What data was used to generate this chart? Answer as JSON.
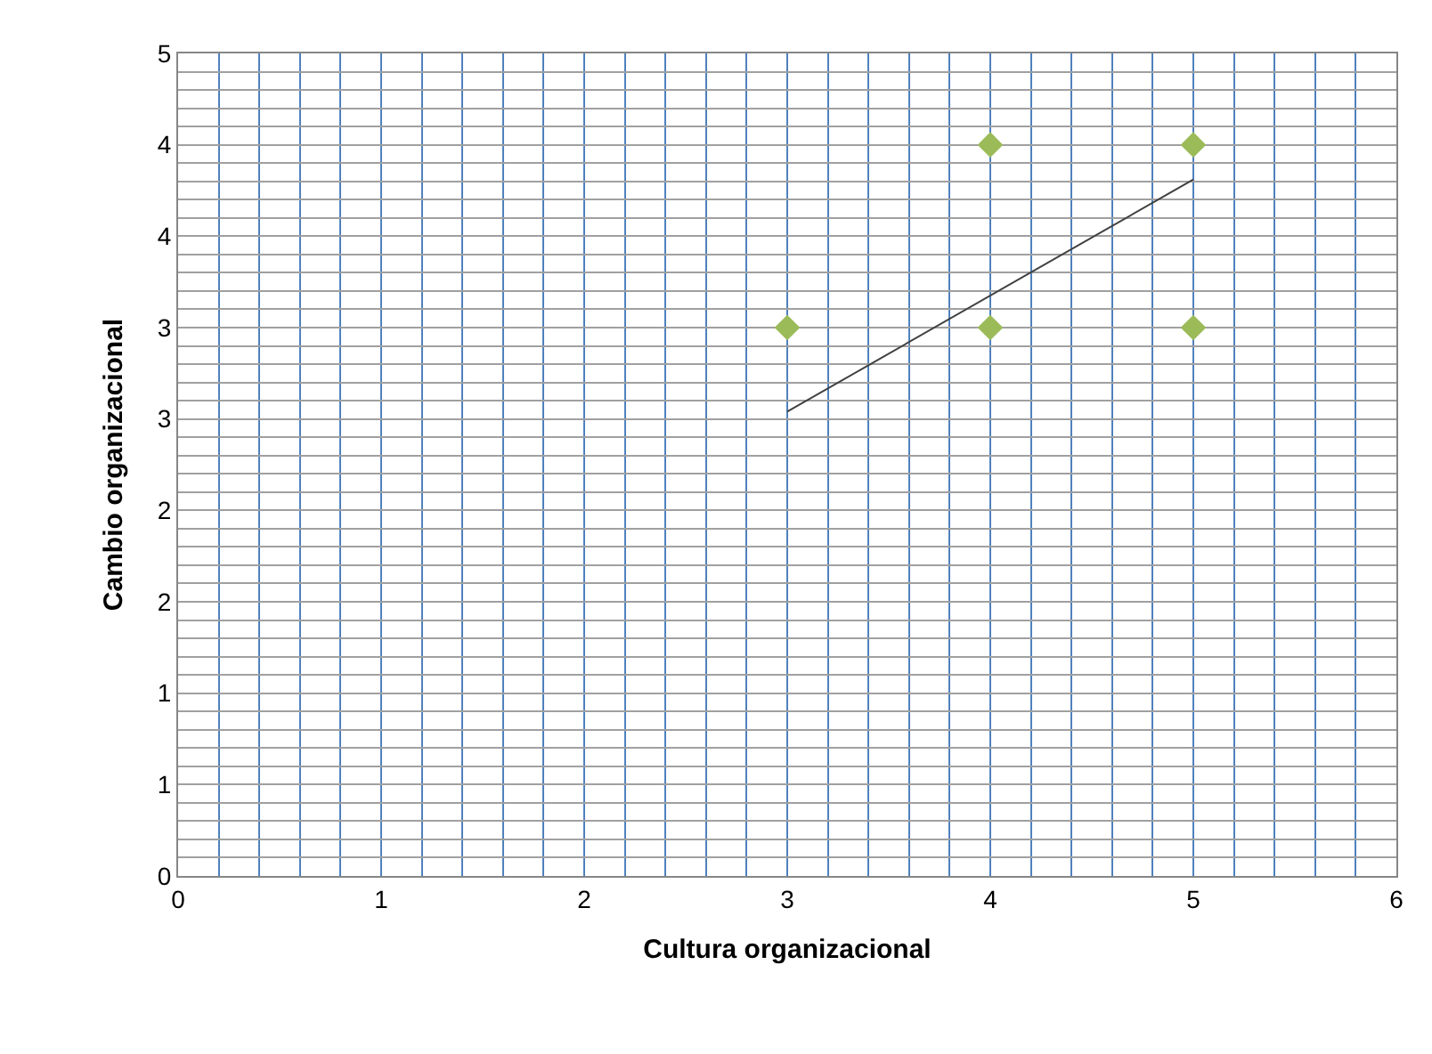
{
  "chart_data": {
    "type": "scatter",
    "xlabel": "Cultura organizacional",
    "ylabel": "Cambio organizacional",
    "series": [
      {
        "color": "#9bbb59",
        "marker": "diamond",
        "x": [
          3,
          4,
          4,
          5,
          5
        ],
        "values": [
          3,
          4,
          3,
          4,
          3
        ]
      },
      {
        "type": "line",
        "color": "#404040",
        "marker": "none",
        "x": [
          3,
          5
        ],
        "values": [
          2.54,
          3.81
        ]
      }
    ],
    "xlim": [
      0,
      6
    ],
    "ylim": [
      0,
      4.5
    ],
    "xticks": [
      0,
      {
        "value": 0.2,
        "label": null
      },
      {
        "value": 0.4,
        "label": null
      },
      {
        "value": 0.6,
        "label": null
      },
      {
        "value": 0.8,
        "label": null
      },
      1,
      {
        "value": 1.2,
        "label": null
      },
      {
        "value": 1.4,
        "label": null
      },
      {
        "value": 1.6,
        "label": null
      },
      {
        "value": 1.8,
        "label": null
      },
      2,
      {
        "value": 2.2,
        "label": null
      },
      {
        "value": 2.4,
        "label": null
      },
      {
        "value": 2.6,
        "label": null
      },
      {
        "value": 2.8,
        "label": null
      },
      3,
      {
        "value": 3.2,
        "label": null
      },
      {
        "value": 3.4,
        "label": null
      },
      {
        "value": 3.6,
        "label": null
      },
      {
        "value": 3.8,
        "label": null
      },
      4,
      {
        "value": 4.2,
        "label": null
      },
      {
        "value": 4.4,
        "label": null
      },
      {
        "value": 4.6,
        "label": null
      },
      {
        "value": 4.8,
        "label": null
      },
      5,
      {
        "value": 5.2,
        "label": null
      },
      {
        "value": 5.4,
        "label": null
      },
      {
        "value": 5.6,
        "label": null
      },
      {
        "value": 5.8,
        "label": null
      },
      6
    ],
    "yticks": [
      0,
      {
        "value": 0.1,
        "label": null
      },
      {
        "value": 0.2,
        "label": null
      },
      {
        "value": 0.3,
        "label": null
      },
      {
        "value": 0.4,
        "label": null
      },
      {
        "value": 0.5,
        "label": "1"
      },
      {
        "value": 0.6,
        "label": null
      },
      {
        "value": 0.7,
        "label": null
      },
      {
        "value": 0.8,
        "label": null
      },
      {
        "value": 0.9,
        "label": null
      },
      1,
      {
        "value": 1.1,
        "label": null
      },
      {
        "value": 1.2,
        "label": null
      },
      {
        "value": 1.3,
        "label": null
      },
      {
        "value": 1.4,
        "label": null
      },
      {
        "value": 1.5,
        "label": "2"
      },
      {
        "value": 1.6,
        "label": null
      },
      {
        "value": 1.7,
        "label": null
      },
      {
        "value": 1.8,
        "label": null
      },
      {
        "value": 1.9,
        "label": null
      },
      2,
      {
        "value": 2.1,
        "label": null
      },
      {
        "value": 2.2,
        "label": null
      },
      {
        "value": 2.3,
        "label": null
      },
      {
        "value": 2.4,
        "label": null
      },
      {
        "value": 2.5,
        "label": "3"
      },
      {
        "value": 2.6,
        "label": null
      },
      {
        "value": 2.7,
        "label": null
      },
      {
        "value": 2.8,
        "label": null
      },
      {
        "value": 2.9,
        "label": null
      },
      3,
      {
        "value": 3.1,
        "label": null
      },
      {
        "value": 3.2,
        "label": null
      },
      {
        "value": 3.3,
        "label": null
      },
      {
        "value": 3.4,
        "label": null
      },
      {
        "value": 3.5,
        "label": "4"
      },
      {
        "value": 3.6,
        "label": null
      },
      {
        "value": 3.7,
        "label": null
      },
      {
        "value": 3.8,
        "label": null
      },
      {
        "value": 3.9,
        "label": null
      },
      4,
      {
        "value": 4.1,
        "label": null
      },
      {
        "value": 4.2,
        "label": null
      },
      {
        "value": 4.3,
        "label": null
      },
      {
        "value": 4.4,
        "label": null
      },
      {
        "value": 4.5,
        "label": "5"
      }
    ],
    "grid": true
  }
}
